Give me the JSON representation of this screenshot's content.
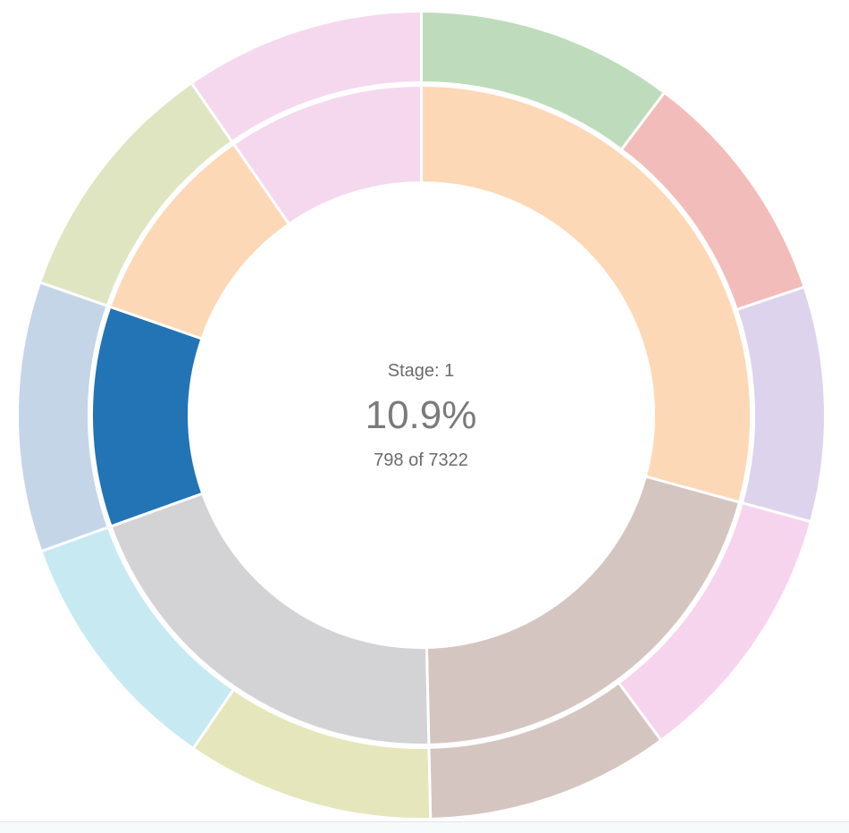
{
  "center_label": {
    "stage": "Stage: 1",
    "percent": "10.9%",
    "count": "798 of 7322"
  },
  "chart_data": {
    "type": "pie",
    "subtype": "sunburst-donut-two-rings",
    "title": "",
    "legend": "none",
    "selected_segment": {
      "ring": "inner",
      "index": 3,
      "stage": "1",
      "value": 798,
      "total": 7322,
      "percent": 10.9,
      "color": "#2274b5"
    },
    "geometry": {
      "cx": 471.5,
      "cy": 464.5,
      "inner_ring_r0": 260,
      "inner_ring_r1": 369,
      "outer_ring_r0": 372,
      "outer_ring_r1": 452,
      "stroke": "#ffffff",
      "stroke_width": 3
    },
    "rings": [
      {
        "name": "inner",
        "segments": [
          {
            "start_deg": 0,
            "end_deg": 105.3,
            "share_pct": 29.2,
            "color": "#fcd8b6",
            "selected": false
          },
          {
            "start_deg": 105.3,
            "end_deg": 178.7,
            "share_pct": 20.4,
            "color": "#d5c5c0",
            "selected": false
          },
          {
            "start_deg": 178.7,
            "end_deg": 250.3,
            "share_pct": 19.9,
            "color": "#d3d3d5",
            "selected": false
          },
          {
            "start_deg": 250.3,
            "end_deg": 289.2,
            "share_pct": 10.9,
            "color": "#2274b5",
            "selected": true
          },
          {
            "start_deg": 289.2,
            "end_deg": 325.3,
            "share_pct": 10.0,
            "color": "#fcd8b6",
            "selected": false
          },
          {
            "start_deg": 325.3,
            "end_deg": 360,
            "share_pct": 9.6,
            "color": "#f5d8ee",
            "selected": false
          }
        ]
      },
      {
        "name": "outer",
        "segments": [
          {
            "start_deg": 0,
            "end_deg": 37,
            "share_pct": 10.3,
            "color": "#bedcbb",
            "selected": false
          },
          {
            "start_deg": 37,
            "end_deg": 71.5,
            "share_pct": 9.6,
            "color": "#f2bcba",
            "selected": false
          },
          {
            "start_deg": 71.5,
            "end_deg": 105.3,
            "share_pct": 9.4,
            "color": "#ddd3ec",
            "selected": false
          },
          {
            "start_deg": 105.3,
            "end_deg": 143.6,
            "share_pct": 10.6,
            "color": "#f7d4ee",
            "selected": false
          },
          {
            "start_deg": 143.6,
            "end_deg": 178.7,
            "share_pct": 9.8,
            "color": "#d5c5c0",
            "selected": false
          },
          {
            "start_deg": 178.7,
            "end_deg": 214.4,
            "share_pct": 9.9,
            "color": "#e6e6bc",
            "selected": false
          },
          {
            "start_deg": 214.4,
            "end_deg": 250.3,
            "share_pct": 10.0,
            "color": "#c6e9f2",
            "selected": false
          },
          {
            "start_deg": 250.3,
            "end_deg": 289.2,
            "share_pct": 10.8,
            "color": "#c5d5e8",
            "selected": false
          },
          {
            "start_deg": 289.2,
            "end_deg": 325.3,
            "share_pct": 10.0,
            "color": "#dfe5c1",
            "selected": false
          },
          {
            "start_deg": 325.3,
            "end_deg": 360,
            "share_pct": 9.6,
            "color": "#f5d8ee",
            "selected": false
          }
        ]
      }
    ]
  },
  "footer": {
    "divider_color": "#e0e6ea",
    "background": "#f7fafb"
  }
}
